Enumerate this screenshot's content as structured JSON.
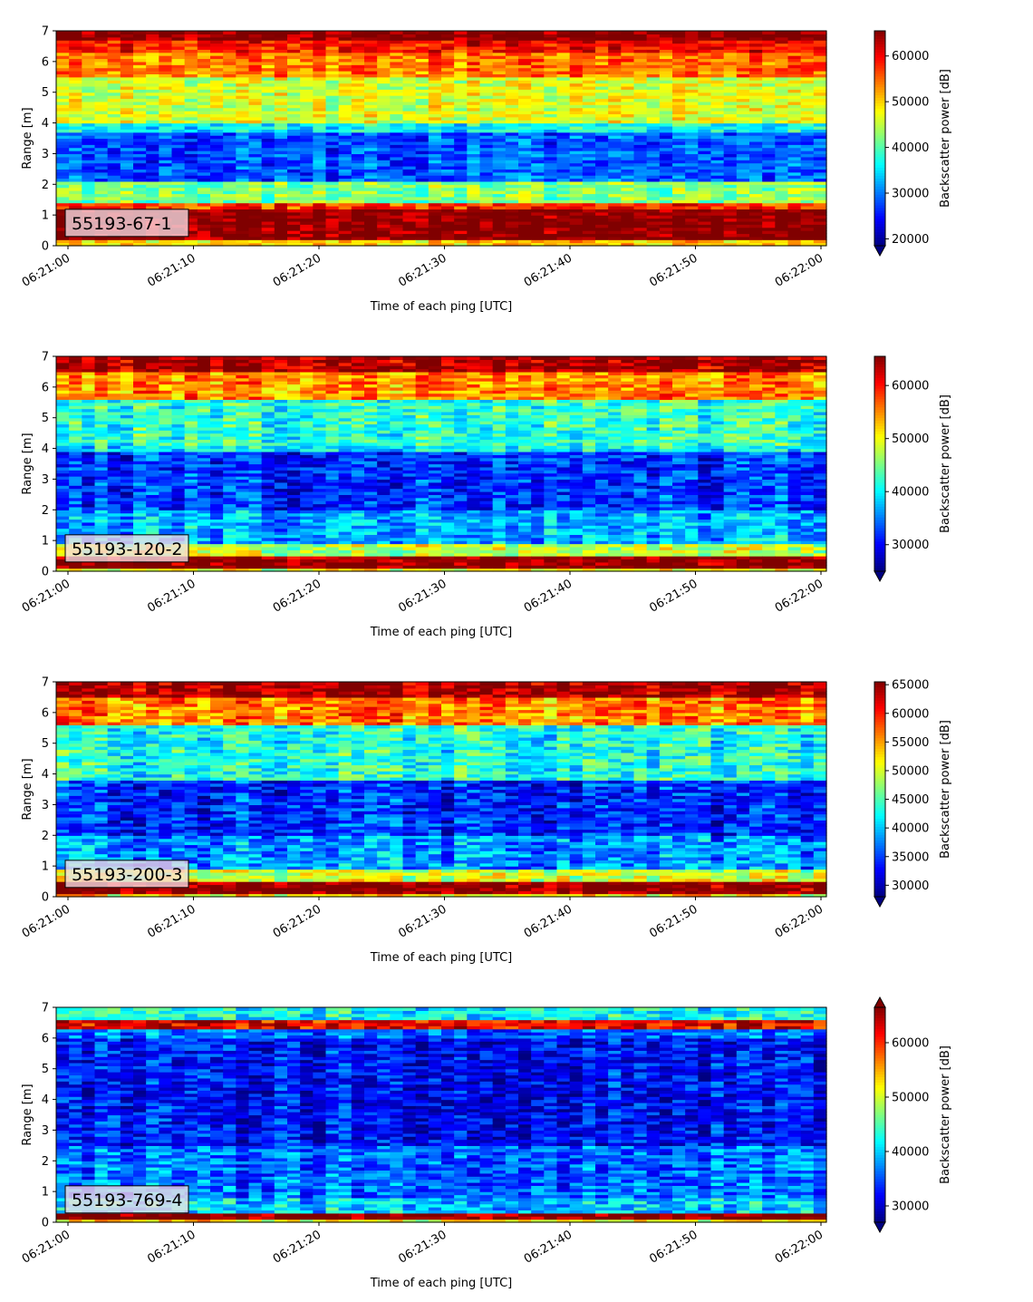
{
  "chart_data": [
    {
      "type": "heatmap",
      "label_box": "55193-67-1",
      "xlabel": "Time of each ping [UTC]",
      "ylabel": "Range [m]",
      "x_ticks": [
        "06:21:00",
        "06:21:10",
        "06:21:20",
        "06:21:30",
        "06:21:40",
        "06:21:50",
        "06:22:00"
      ],
      "y_ticks": [
        0,
        1,
        2,
        3,
        4,
        5,
        6,
        7
      ],
      "ylim": [
        0,
        7
      ],
      "xlim": [
        "06:21:00",
        "06:22:00"
      ],
      "colorbar": {
        "label": "Backscatter power [dB]",
        "min": 18500,
        "max": 65500,
        "ticks": [
          20000,
          30000,
          40000,
          50000,
          60000
        ],
        "extend": "min",
        "colormap": "jet"
      },
      "bands": [
        {
          "from": 0.0,
          "to": 0.25,
          "value": 50000
        },
        {
          "from": 0.25,
          "to": 1.2,
          "value": 65500
        },
        {
          "from": 1.2,
          "to": 1.45,
          "value": 57000
        },
        {
          "from": 1.45,
          "to": 2.1,
          "value": 42000
        },
        {
          "from": 2.1,
          "to": 3.7,
          "value": 28000
        },
        {
          "from": 3.7,
          "to": 4.05,
          "value": 36000
        },
        {
          "from": 4.05,
          "to": 5.5,
          "value": 46000
        },
        {
          "from": 5.5,
          "to": 6.3,
          "value": 54000
        },
        {
          "from": 6.3,
          "to": 6.7,
          "value": 59000
        },
        {
          "from": 6.7,
          "to": 7.0,
          "value": 65500
        }
      ]
    },
    {
      "type": "heatmap",
      "label_box": "55193-120-2",
      "xlabel": "Time of each ping [UTC]",
      "ylabel": "Range [m]",
      "x_ticks": [
        "06:21:00",
        "06:21:10",
        "06:21:20",
        "06:21:30",
        "06:21:40",
        "06:21:50",
        "06:22:00"
      ],
      "y_ticks": [
        0,
        1,
        2,
        3,
        4,
        5,
        6,
        7
      ],
      "ylim": [
        0,
        7
      ],
      "xlim": [
        "06:21:00",
        "06:22:00"
      ],
      "colorbar": {
        "label": "Backscatter power [dB]",
        "min": 25000,
        "max": 65500,
        "ticks": [
          30000,
          40000,
          50000,
          60000
        ],
        "extend": "min",
        "colormap": "jet"
      },
      "bands": [
        {
          "from": 0.0,
          "to": 0.1,
          "value": 50000
        },
        {
          "from": 0.1,
          "to": 0.55,
          "value": 65500
        },
        {
          "from": 0.55,
          "to": 0.9,
          "value": 48000
        },
        {
          "from": 0.9,
          "to": 2.0,
          "value": 37000
        },
        {
          "from": 2.0,
          "to": 3.9,
          "value": 32000
        },
        {
          "from": 3.9,
          "to": 4.1,
          "value": 40000
        },
        {
          "from": 4.1,
          "to": 5.6,
          "value": 42000
        },
        {
          "from": 5.6,
          "to": 6.5,
          "value": 55000
        },
        {
          "from": 6.5,
          "to": 7.0,
          "value": 64000
        }
      ]
    },
    {
      "type": "heatmap",
      "label_box": "55193-200-3",
      "xlabel": "Time of each ping [UTC]",
      "ylabel": "Range [m]",
      "x_ticks": [
        "06:21:00",
        "06:21:10",
        "06:21:20",
        "06:21:30",
        "06:21:40",
        "06:21:50",
        "06:22:00"
      ],
      "y_ticks": [
        0,
        1,
        2,
        3,
        4,
        5,
        6,
        7
      ],
      "ylim": [
        0,
        7
      ],
      "xlim": [
        "06:21:00",
        "06:22:00"
      ],
      "colorbar": {
        "label": "Backscatter power [dB]",
        "min": 28000,
        "max": 65500,
        "ticks": [
          30000,
          35000,
          40000,
          45000,
          50000,
          55000,
          60000,
          65000
        ],
        "extend": "min",
        "colormap": "jet"
      },
      "bands": [
        {
          "from": 0.0,
          "to": 0.1,
          "value": 52000
        },
        {
          "from": 0.1,
          "to": 0.5,
          "value": 65500
        },
        {
          "from": 0.5,
          "to": 0.9,
          "value": 50000
        },
        {
          "from": 0.9,
          "to": 2.0,
          "value": 38000
        },
        {
          "from": 2.0,
          "to": 3.8,
          "value": 34000
        },
        {
          "from": 3.8,
          "to": 5.6,
          "value": 43000
        },
        {
          "from": 5.6,
          "to": 6.5,
          "value": 56000
        },
        {
          "from": 6.5,
          "to": 7.0,
          "value": 64000
        }
      ]
    },
    {
      "type": "heatmap",
      "label_box": "55193-769-4",
      "xlabel": "Time of each ping [UTC]",
      "ylabel": "Range [m]",
      "x_ticks": [
        "06:21:00",
        "06:21:10",
        "06:21:20",
        "06:21:30",
        "06:21:40",
        "06:21:50",
        "06:22:00"
      ],
      "y_ticks": [
        0,
        1,
        2,
        3,
        4,
        5,
        6,
        7
      ],
      "ylim": [
        0,
        7
      ],
      "xlim": [
        "06:21:00",
        "06:22:00"
      ],
      "colorbar": {
        "label": "Backscatter power [dB]",
        "min": 27000,
        "max": 66500,
        "ticks": [
          30000,
          40000,
          50000,
          60000
        ],
        "extend": "both",
        "colormap": "jet"
      },
      "bands": [
        {
          "from": 0.0,
          "to": 0.15,
          "value": 52000
        },
        {
          "from": 0.15,
          "to": 0.3,
          "value": 66500
        },
        {
          "from": 0.3,
          "to": 0.8,
          "value": 40000
        },
        {
          "from": 0.8,
          "to": 2.5,
          "value": 36000
        },
        {
          "from": 2.5,
          "to": 6.0,
          "value": 32000
        },
        {
          "from": 6.0,
          "to": 6.35,
          "value": 36000
        },
        {
          "from": 6.35,
          "to": 6.65,
          "value": 62000
        },
        {
          "from": 6.65,
          "to": 7.0,
          "value": 42000
        }
      ]
    }
  ]
}
